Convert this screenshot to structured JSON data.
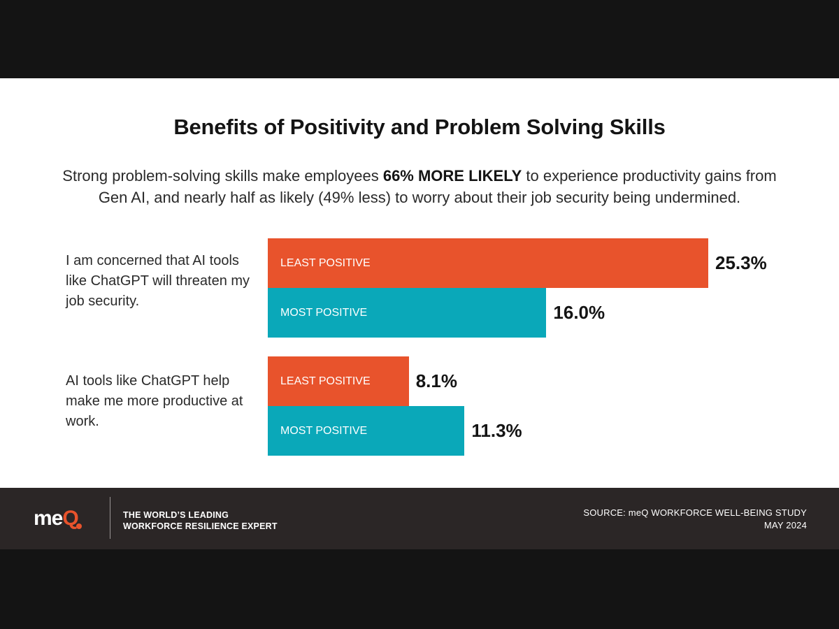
{
  "title": "Benefits of Positivity and Problem Solving Skills",
  "subtitle": {
    "before": "Strong problem-solving skills make employees ",
    "highlight": "66% MORE LIKELY",
    "after": " to experience productivity gains from Gen AI, and nearly half as likely (49% less) to worry about their job security being undermined."
  },
  "colors": {
    "least_positive": "#e8532c",
    "most_positive": "#0aa8b9"
  },
  "chart_data": {
    "type": "bar",
    "orientation": "horizontal",
    "unit": "%",
    "title": "Benefits of Positivity and Problem Solving Skills",
    "categories": [
      "I am concerned that AI tools like ChatGPT will threaten my job security.",
      "AI tools like ChatGPT help make me more productive at work."
    ],
    "series": [
      {
        "name": "LEAST POSITIVE",
        "values": [
          25.3,
          8.1
        ],
        "labels": [
          "25.3%",
          "8.1%"
        ]
      },
      {
        "name": "MOST POSITIVE",
        "values": [
          16.0,
          11.3
        ],
        "labels": [
          "16.0%",
          "11.3%"
        ]
      }
    ],
    "xlim": [
      0,
      25.3
    ],
    "grid": false
  },
  "footer": {
    "logo_main": "me",
    "logo_accent": "Q",
    "tagline_line1": "THE WORLD’S LEADING",
    "tagline_line2": "WORKFORCE RESILIENCE EXPERT",
    "source_line1": "SOURCE: meQ WORKFORCE WELL-BEING STUDY",
    "source_line2": "MAY 2024"
  }
}
